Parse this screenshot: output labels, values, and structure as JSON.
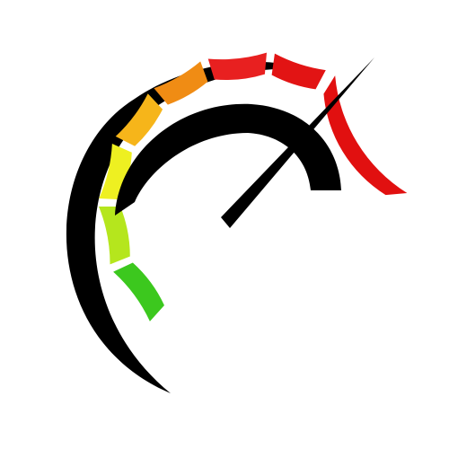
{
  "gauge": {
    "level": 0.78,
    "segment_colors": [
      "#3cc81e",
      "#b5e61d",
      "#eef021",
      "#f6b51a",
      "#f08c14",
      "#e82020",
      "#e21414",
      "#e11010"
    ],
    "arc_color": "#000000",
    "needle_color": "#000000",
    "icon": "speedometer-icon"
  }
}
